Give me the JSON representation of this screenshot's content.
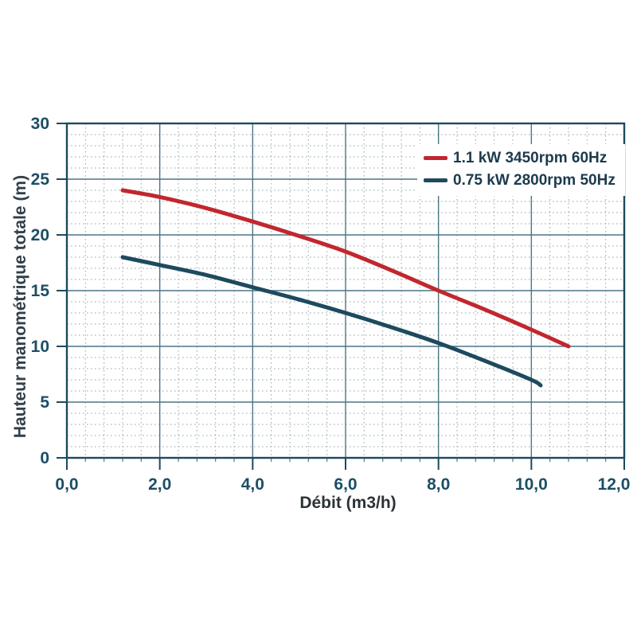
{
  "chart_data": {
    "type": "line",
    "title": "",
    "xlabel": "Débit (m3/h)",
    "ylabel": "Hauteur manométrique totale (m)",
    "xlim": [
      0,
      12
    ],
    "ylim": [
      0,
      30
    ],
    "x_tick_step": 2,
    "y_tick_step": 5,
    "x_minor_step": 0.4,
    "y_minor_step": 1,
    "x_tick_labels": [
      "0,0",
      "2,0",
      "4,0",
      "6,0",
      "8,0",
      "10,0",
      "12,0"
    ],
    "y_tick_labels": [
      "0",
      "5",
      "10",
      "15",
      "20",
      "25",
      "30"
    ],
    "grid": "major solid + minor dotted",
    "legend_position": "top-right",
    "series": [
      {
        "name": "1.1 kW 3450rpm 60Hz",
        "color": "#c1272d",
        "points": [
          [
            1.2,
            24.0
          ],
          [
            2.0,
            23.4
          ],
          [
            3.0,
            22.4
          ],
          [
            4.0,
            21.2
          ],
          [
            5.0,
            19.9
          ],
          [
            6.0,
            18.5
          ],
          [
            7.0,
            16.8
          ],
          [
            8.0,
            15.0
          ],
          [
            9.0,
            13.3
          ],
          [
            10.0,
            11.5
          ],
          [
            10.8,
            10.0
          ]
        ]
      },
      {
        "name": "0.75 kW 2800rpm 50Hz",
        "color": "#1d4a5e",
        "points": [
          [
            1.2,
            18.0
          ],
          [
            2.0,
            17.3
          ],
          [
            3.0,
            16.4
          ],
          [
            4.0,
            15.3
          ],
          [
            5.0,
            14.2
          ],
          [
            6.0,
            13.0
          ],
          [
            7.0,
            11.7
          ],
          [
            8.0,
            10.3
          ],
          [
            9.0,
            8.7
          ],
          [
            10.0,
            7.0
          ],
          [
            10.2,
            6.5
          ]
        ]
      }
    ]
  }
}
